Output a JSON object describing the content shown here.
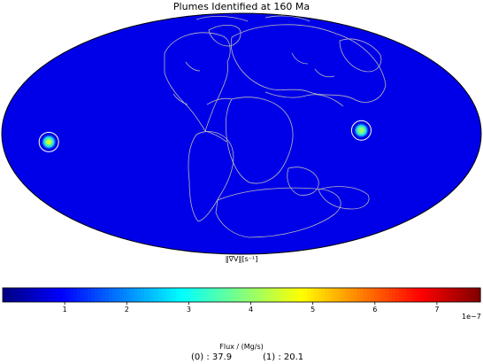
{
  "chart_data": {
    "type": "heatmap",
    "projection": "mollweide",
    "title": "Plumes Identified at 160 Ma",
    "map_label": "‖∇V‖[s⁻¹]",
    "colormap": "jet",
    "background_value": 2e-09,
    "colorbar": {
      "min": 0,
      "max": 7.7e-07,
      "ticks": [
        1,
        2,
        3,
        4,
        5,
        6,
        7
      ],
      "tick_labels": [
        "1",
        "2",
        "3",
        "4",
        "5",
        "6",
        "7"
      ],
      "exponent_label": "1e−7"
    },
    "plumes": [
      {
        "id": "0",
        "lon": -145,
        "lat": -5,
        "peak": 4.5e-07
      },
      {
        "id": "1",
        "lon": 90,
        "lat": 2,
        "peak": 4e-07
      }
    ],
    "flux": {
      "title": "Flux / (Mg/s)",
      "entries": [
        {
          "label": "(0) : 37.9"
        },
        {
          "label": "(1) : 20.1"
        }
      ]
    }
  },
  "colors": {
    "map_background": "#00109a",
    "outline": "#000000",
    "coast": "#b9b9b9",
    "circle": "#ffffff"
  }
}
